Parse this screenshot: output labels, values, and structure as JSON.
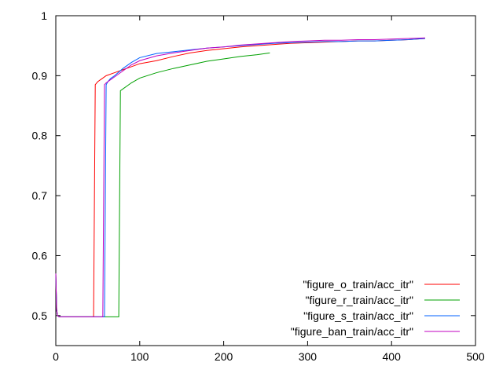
{
  "chart_data": {
    "type": "line",
    "title": "",
    "xlabel": "",
    "ylabel": "",
    "xlim": [
      0,
      500
    ],
    "ylim": [
      0.45,
      1.0
    ],
    "xticks": [
      0,
      100,
      200,
      300,
      400,
      500
    ],
    "yticks": [
      0.5,
      0.6,
      0.7,
      0.8,
      0.9,
      1.0
    ],
    "xtick_labels": [
      "0",
      "100",
      "200",
      "300",
      "400",
      "500"
    ],
    "ytick_labels": [
      "0.5",
      "0.6",
      "0.7",
      "0.8",
      "0.9",
      "1"
    ],
    "grid": false,
    "legend_position": "bottom-right",
    "series": [
      {
        "name": "\"figure_o_train/acc_itr\"",
        "color": "#ff0000",
        "x": [
          0,
          1,
          2,
          4,
          10,
          20,
          30,
          40,
          45,
          46,
          47,
          50,
          55,
          60,
          70,
          80,
          90,
          100,
          120,
          140,
          160,
          180,
          200,
          220,
          240,
          260,
          280,
          300,
          320,
          340,
          360,
          380,
          400,
          420,
          440
        ],
        "y": [
          0.57,
          0.51,
          0.5,
          0.498,
          0.498,
          0.498,
          0.498,
          0.498,
          0.498,
          0.69,
          0.885,
          0.89,
          0.895,
          0.9,
          0.905,
          0.91,
          0.915,
          0.92,
          0.925,
          0.932,
          0.938,
          0.942,
          0.945,
          0.948,
          0.95,
          0.952,
          0.954,
          0.955,
          0.956,
          0.957,
          0.958,
          0.958,
          0.959,
          0.96,
          0.962
        ]
      },
      {
        "name": "\"figure_r_train/acc_itr\"",
        "color": "#00a000",
        "x": [
          0,
          1,
          2,
          4,
          10,
          20,
          30,
          40,
          50,
          60,
          70,
          75,
          76,
          77,
          80,
          90,
          100,
          120,
          140,
          160,
          180,
          200,
          220,
          240,
          255
        ],
        "y": [
          0.57,
          0.51,
          0.5,
          0.498,
          0.498,
          0.498,
          0.498,
          0.498,
          0.498,
          0.498,
          0.498,
          0.498,
          0.69,
          0.875,
          0.878,
          0.888,
          0.896,
          0.905,
          0.912,
          0.918,
          0.924,
          0.928,
          0.932,
          0.935,
          0.938
        ]
      },
      {
        "name": "\"figure_s_train/acc_itr\"",
        "color": "#0060ff",
        "x": [
          0,
          1,
          2,
          4,
          10,
          20,
          30,
          40,
          50,
          58,
          59,
          60,
          62,
          65,
          70,
          80,
          90,
          100,
          120,
          140,
          160,
          180,
          200,
          220,
          240,
          260,
          280,
          300,
          320,
          340,
          360,
          380,
          400,
          420,
          440
        ],
        "y": [
          0.57,
          0.51,
          0.5,
          0.498,
          0.498,
          0.498,
          0.498,
          0.498,
          0.498,
          0.498,
          0.69,
          0.885,
          0.89,
          0.895,
          0.9,
          0.912,
          0.922,
          0.93,
          0.937,
          0.94,
          0.943,
          0.946,
          0.948,
          0.95,
          0.952,
          0.954,
          0.955,
          0.956,
          0.957,
          0.957,
          0.958,
          0.958,
          0.959,
          0.96,
          0.962
        ]
      },
      {
        "name": "\"figure_ban_train/acc_itr\"",
        "color": "#c000c0",
        "x": [
          0,
          1,
          2,
          4,
          10,
          20,
          30,
          40,
          50,
          56,
          57,
          58,
          60,
          65,
          70,
          80,
          90,
          100,
          120,
          140,
          160,
          180,
          200,
          220,
          240,
          260,
          280,
          300,
          320,
          340,
          360,
          380,
          400,
          420,
          440
        ],
        "y": [
          0.57,
          0.51,
          0.5,
          0.498,
          0.498,
          0.498,
          0.498,
          0.498,
          0.498,
          0.498,
          0.69,
          0.885,
          0.888,
          0.893,
          0.898,
          0.908,
          0.918,
          0.925,
          0.933,
          0.938,
          0.942,
          0.946,
          0.948,
          0.951,
          0.953,
          0.955,
          0.957,
          0.958,
          0.959,
          0.959,
          0.96,
          0.96,
          0.961,
          0.962,
          0.963
        ]
      }
    ]
  }
}
